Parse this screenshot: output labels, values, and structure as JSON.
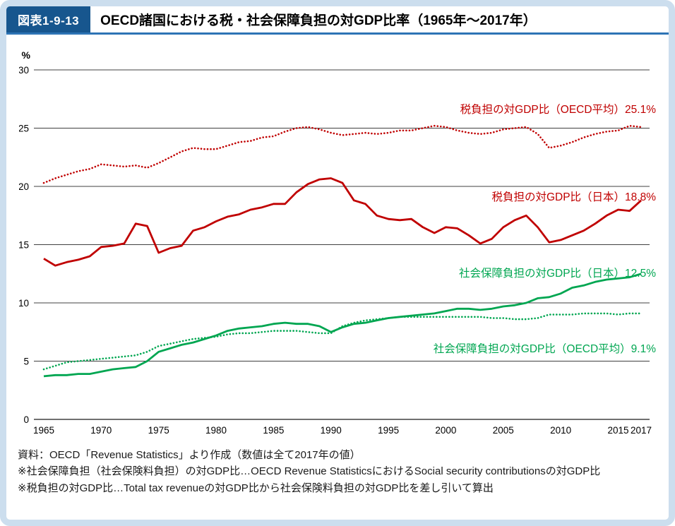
{
  "figure": {
    "label": "図表1-9-13",
    "title": "OECD諸国における税・社会保障負担の対GDP比率（1965年〜2017年）"
  },
  "chart_data": {
    "type": "line",
    "unit_label": "%",
    "ylim": [
      0,
      30
    ],
    "yticks": [
      0,
      5,
      10,
      15,
      20,
      25,
      30
    ],
    "x_start": 1965,
    "x_end": 2017,
    "xticks": [
      1965,
      1970,
      1975,
      1980,
      1985,
      1990,
      1995,
      2000,
      2005,
      2010,
      2015,
      2017
    ],
    "grid": "horizontal",
    "legend_position": "inline-annotations",
    "series": [
      {
        "name": "税負担の対GDP比（OECD平均）",
        "label": "税負担の対GDP比（OECD平均）25.1%",
        "color": "#c00000",
        "style": "dotted",
        "final_value": 25.1,
        "values": [
          20.3,
          20.7,
          21.0,
          21.3,
          21.5,
          21.9,
          21.8,
          21.7,
          21.8,
          21.6,
          22.0,
          22.5,
          23.0,
          23.3,
          23.2,
          23.2,
          23.5,
          23.8,
          23.9,
          24.2,
          24.3,
          24.7,
          25.0,
          25.1,
          24.9,
          24.6,
          24.4,
          24.5,
          24.6,
          24.5,
          24.6,
          24.8,
          24.8,
          25.0,
          25.2,
          25.1,
          24.8,
          24.6,
          24.5,
          24.6,
          24.9,
          25.0,
          25.1,
          24.5,
          23.3,
          23.5,
          23.8,
          24.2,
          24.5,
          24.7,
          24.8,
          25.2,
          25.1
        ]
      },
      {
        "name": "税負担の対GDP比（日本）",
        "label": "税負担の対GDP比（日本）18.8%",
        "color": "#c00000",
        "style": "solid",
        "final_value": 18.8,
        "values": [
          13.8,
          13.2,
          13.5,
          13.7,
          14.0,
          14.8,
          14.9,
          15.1,
          16.8,
          16.6,
          14.3,
          14.7,
          14.9,
          16.2,
          16.5,
          17.0,
          17.4,
          17.6,
          18.0,
          18.2,
          18.5,
          18.5,
          19.5,
          20.2,
          20.6,
          20.7,
          20.3,
          18.8,
          18.5,
          17.5,
          17.2,
          17.1,
          17.2,
          16.5,
          16.0,
          16.5,
          16.4,
          15.8,
          15.1,
          15.5,
          16.5,
          17.1,
          17.5,
          16.5,
          15.2,
          15.4,
          15.8,
          16.2,
          16.8,
          17.5,
          18.0,
          17.9,
          18.8
        ]
      },
      {
        "name": "社会保障負担の対GDP比（日本）",
        "label": "社会保障負担の対GDP比（日本）12.5%",
        "color": "#00a651",
        "style": "solid",
        "final_value": 12.5,
        "values": [
          3.7,
          3.8,
          3.8,
          3.9,
          3.9,
          4.1,
          4.3,
          4.4,
          4.5,
          5.0,
          5.8,
          6.1,
          6.4,
          6.6,
          6.9,
          7.2,
          7.6,
          7.8,
          7.9,
          8.0,
          8.2,
          8.3,
          8.2,
          8.2,
          8.0,
          7.5,
          7.9,
          8.2,
          8.3,
          8.5,
          8.7,
          8.8,
          8.9,
          9.0,
          9.1,
          9.3,
          9.5,
          9.5,
          9.4,
          9.5,
          9.7,
          9.8,
          10.0,
          10.4,
          10.5,
          10.8,
          11.3,
          11.5,
          11.8,
          12.0,
          12.1,
          12.2,
          12.5
        ]
      },
      {
        "name": "社会保障負担の対GDP比（OECD平均）",
        "label": "社会保障負担の対GDP比（OECD平均）9.1%",
        "color": "#00a651",
        "style": "dotted",
        "final_value": 9.1,
        "values": [
          4.3,
          4.6,
          4.9,
          5.0,
          5.1,
          5.2,
          5.3,
          5.4,
          5.5,
          5.8,
          6.3,
          6.5,
          6.7,
          6.9,
          7.0,
          7.1,
          7.3,
          7.4,
          7.4,
          7.5,
          7.6,
          7.6,
          7.6,
          7.5,
          7.4,
          7.4,
          8.0,
          8.3,
          8.5,
          8.6,
          8.7,
          8.8,
          8.8,
          8.8,
          8.8,
          8.8,
          8.8,
          8.8,
          8.8,
          8.7,
          8.7,
          8.6,
          8.6,
          8.7,
          9.0,
          9.0,
          9.0,
          9.1,
          9.1,
          9.1,
          9.0,
          9.1,
          9.1
        ]
      }
    ]
  },
  "notes": {
    "source": "資料：OECD「Revenue Statistics」より作成（数値は全て2017年の値）",
    "note_social": "※社会保障負担（社会保険料負担）の対GDP比…OECD Revenue StatisticsにおけるSocial security contributionsの対GDP比",
    "note_tax": "※税負担の対GDP比…Total tax revenueの対GDP比から社会保険料負担の対GDP比を差し引いて算出"
  }
}
